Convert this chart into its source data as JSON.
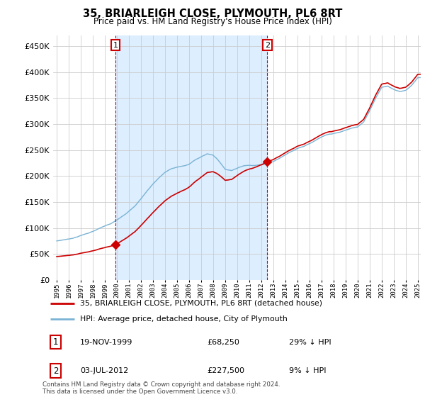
{
  "title": "35, BRIARLEIGH CLOSE, PLYMOUTH, PL6 8RT",
  "subtitle": "Price paid vs. HM Land Registry's House Price Index (HPI)",
  "legend_line1": "35, BRIARLEIGH CLOSE, PLYMOUTH, PL6 8RT (detached house)",
  "legend_line2": "HPI: Average price, detached house, City of Plymouth",
  "annotation1_date": "19-NOV-1999",
  "annotation1_price": "£68,250",
  "annotation1_hpi": "29% ↓ HPI",
  "annotation2_date": "03-JUL-2012",
  "annotation2_price": "£227,500",
  "annotation2_hpi": "9% ↓ HPI",
  "footer": "Contains HM Land Registry data © Crown copyright and database right 2024.\nThis data is licensed under the Open Government Licence v3.0.",
  "house_color": "#cc0000",
  "hpi_color": "#7ab3d4",
  "shade_color": "#ddeeff",
  "background_color": "#ffffff",
  "grid_color": "#cccccc",
  "ylim": [
    0,
    470000
  ],
  "yticks": [
    0,
    50000,
    100000,
    150000,
    200000,
    250000,
    300000,
    350000,
    400000,
    450000
  ],
  "sale1_year": 1999.88,
  "sale1_price": 68250,
  "sale2_year": 2012.5,
  "sale2_price": 227500,
  "xmin": 1995.0,
  "xmax": 2025.25
}
